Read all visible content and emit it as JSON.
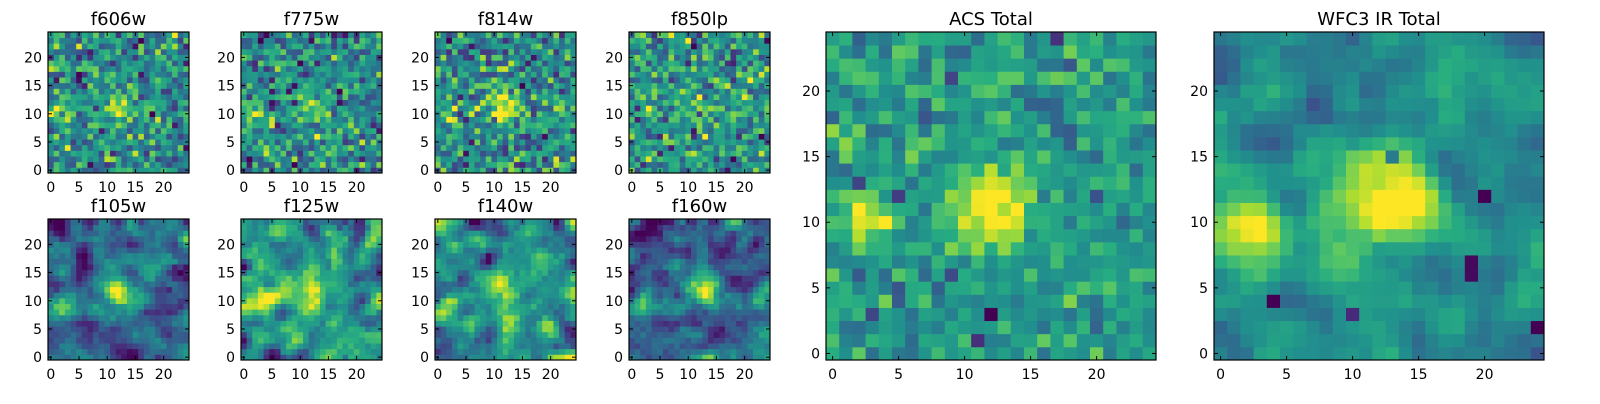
{
  "figure_title": "",
  "chart_data": [
    {
      "type": "heatmap",
      "title": "f606w",
      "xlim": [
        0,
        24
      ],
      "ylim": [
        0,
        24
      ],
      "xticks": [
        "0",
        "5",
        "10",
        "15",
        "20"
      ],
      "yticks": [
        "0",
        "5",
        "10",
        "15",
        "20"
      ],
      "grid_size": 25,
      "seed": 11,
      "noise": 0.95,
      "blobs": [
        [
          12,
          11.5,
          2.0,
          1.0
        ],
        [
          2,
          10,
          1.3,
          0.8
        ]
      ],
      "colormap": "viridis"
    },
    {
      "type": "heatmap",
      "title": "f775w",
      "xlim": [
        0,
        24
      ],
      "ylim": [
        0,
        24
      ],
      "xticks": [
        "0",
        "5",
        "10",
        "15",
        "20"
      ],
      "yticks": [
        "0",
        "5",
        "10",
        "15",
        "20"
      ],
      "grid_size": 25,
      "seed": 23,
      "noise": 1.05,
      "blobs": [
        [
          12,
          11,
          2.2,
          0.7
        ],
        [
          2,
          10,
          1.5,
          0.6
        ]
      ],
      "colormap": "viridis"
    },
    {
      "type": "heatmap",
      "title": "f814w",
      "xlim": [
        0,
        24
      ],
      "ylim": [
        0,
        24
      ],
      "xticks": [
        "0",
        "5",
        "10",
        "15",
        "20"
      ],
      "yticks": [
        "0",
        "5",
        "10",
        "15",
        "20"
      ],
      "grid_size": 25,
      "seed": 37,
      "noise": 0.95,
      "blobs": [
        [
          12,
          11.5,
          2.1,
          0.9
        ],
        [
          2,
          10,
          1.3,
          0.7
        ]
      ],
      "colormap": "viridis"
    },
    {
      "type": "heatmap",
      "title": "f850lp",
      "xlim": [
        0,
        24
      ],
      "ylim": [
        0,
        24
      ],
      "xticks": [
        "0",
        "5",
        "10",
        "15",
        "20"
      ],
      "yticks": [
        "0",
        "5",
        "10",
        "15",
        "20"
      ],
      "grid_size": 25,
      "seed": 53,
      "noise": 1.3,
      "blobs": [
        [
          12,
          11,
          2.0,
          0.4
        ]
      ],
      "colormap": "viridis"
    },
    {
      "type": "heatmap",
      "title": "f105w",
      "xlim": [
        0,
        24
      ],
      "ylim": [
        0,
        24
      ],
      "xticks": [
        "0",
        "5",
        "10",
        "15",
        "20"
      ],
      "yticks": [
        "0",
        "5",
        "10",
        "15",
        "20"
      ],
      "grid_size": 25,
      "seed": 61,
      "noise": 0.7,
      "smooth": 1,
      "blobs": [
        [
          12,
          11,
          2.6,
          1.0
        ],
        [
          2,
          9,
          1.8,
          0.8
        ]
      ],
      "colormap": "viridis"
    },
    {
      "type": "heatmap",
      "title": "f125w",
      "xlim": [
        0,
        24
      ],
      "ylim": [
        0,
        24
      ],
      "xticks": [
        "0",
        "5",
        "10",
        "15",
        "20"
      ],
      "yticks": [
        "0",
        "5",
        "10",
        "15",
        "20"
      ],
      "grid_size": 25,
      "seed": 71,
      "noise": 0.8,
      "smooth": 1,
      "blobs": [
        [
          11,
          12,
          3.0,
          0.8
        ],
        [
          3,
          10,
          2.0,
          0.6
        ]
      ],
      "colormap": "viridis"
    },
    {
      "type": "heatmap",
      "title": "f140w",
      "xlim": [
        0,
        24
      ],
      "ylim": [
        0,
        24
      ],
      "xticks": [
        "0",
        "5",
        "10",
        "15",
        "20"
      ],
      "yticks": [
        "0",
        "5",
        "10",
        "15",
        "20"
      ],
      "grid_size": 25,
      "seed": 83,
      "noise": 0.85,
      "smooth": 1,
      "blobs": [
        [
          12,
          11,
          2.5,
          0.7
        ],
        [
          2,
          9,
          1.8,
          0.6
        ]
      ],
      "colormap": "viridis"
    },
    {
      "type": "heatmap",
      "title": "f160w",
      "xlim": [
        0,
        24
      ],
      "ylim": [
        0,
        24
      ],
      "xticks": [
        "0",
        "5",
        "10",
        "15",
        "20"
      ],
      "yticks": [
        "0",
        "5",
        "10",
        "15",
        "20"
      ],
      "grid_size": 25,
      "seed": 97,
      "noise": 0.8,
      "smooth": 1,
      "blobs": [
        [
          13,
          12,
          2.4,
          0.9
        ],
        [
          2,
          9,
          1.6,
          0.6
        ]
      ],
      "colormap": "viridis"
    },
    {
      "type": "heatmap",
      "title": "ACS Total",
      "xlim": [
        0,
        24
      ],
      "ylim": [
        0,
        24
      ],
      "xticks": [
        "0",
        "5",
        "10",
        "15",
        "20"
      ],
      "yticks": [
        "0",
        "5",
        "10",
        "15",
        "20"
      ],
      "grid_size": 25,
      "seed": 109,
      "noise": 0.55,
      "blobs": [
        [
          12,
          11.5,
          2.0,
          1.3
        ],
        [
          2.5,
          10.5,
          1.4,
          1.1
        ]
      ],
      "dark_spots": [
        [
          5,
          12
        ],
        [
          17,
          24
        ],
        [
          11,
          1
        ],
        [
          12,
          3
        ],
        [
          2,
          13
        ],
        [
          17,
          18
        ]
      ],
      "colormap": "viridis"
    },
    {
      "type": "heatmap",
      "title": "WFC3 IR Total",
      "xlim": [
        0,
        24
      ],
      "ylim": [
        0,
        24
      ],
      "xticks": [
        "0",
        "5",
        "10",
        "15",
        "20"
      ],
      "yticks": [
        "0",
        "5",
        "10",
        "15",
        "20"
      ],
      "grid_size": 25,
      "seed": 127,
      "noise": 0.55,
      "smooth": 1,
      "blobs": [
        [
          12.5,
          12,
          2.8,
          1.3
        ],
        [
          2,
          9.5,
          2.2,
          1.0
        ],
        [
          17,
          20,
          2.0,
          0.5
        ]
      ],
      "dark_spots": [
        [
          19,
          7
        ],
        [
          19,
          6
        ],
        [
          20,
          12
        ],
        [
          10,
          3
        ],
        [
          4,
          4
        ],
        [
          24,
          2
        ],
        [
          13,
          15
        ]
      ],
      "colormap": "viridis"
    }
  ]
}
